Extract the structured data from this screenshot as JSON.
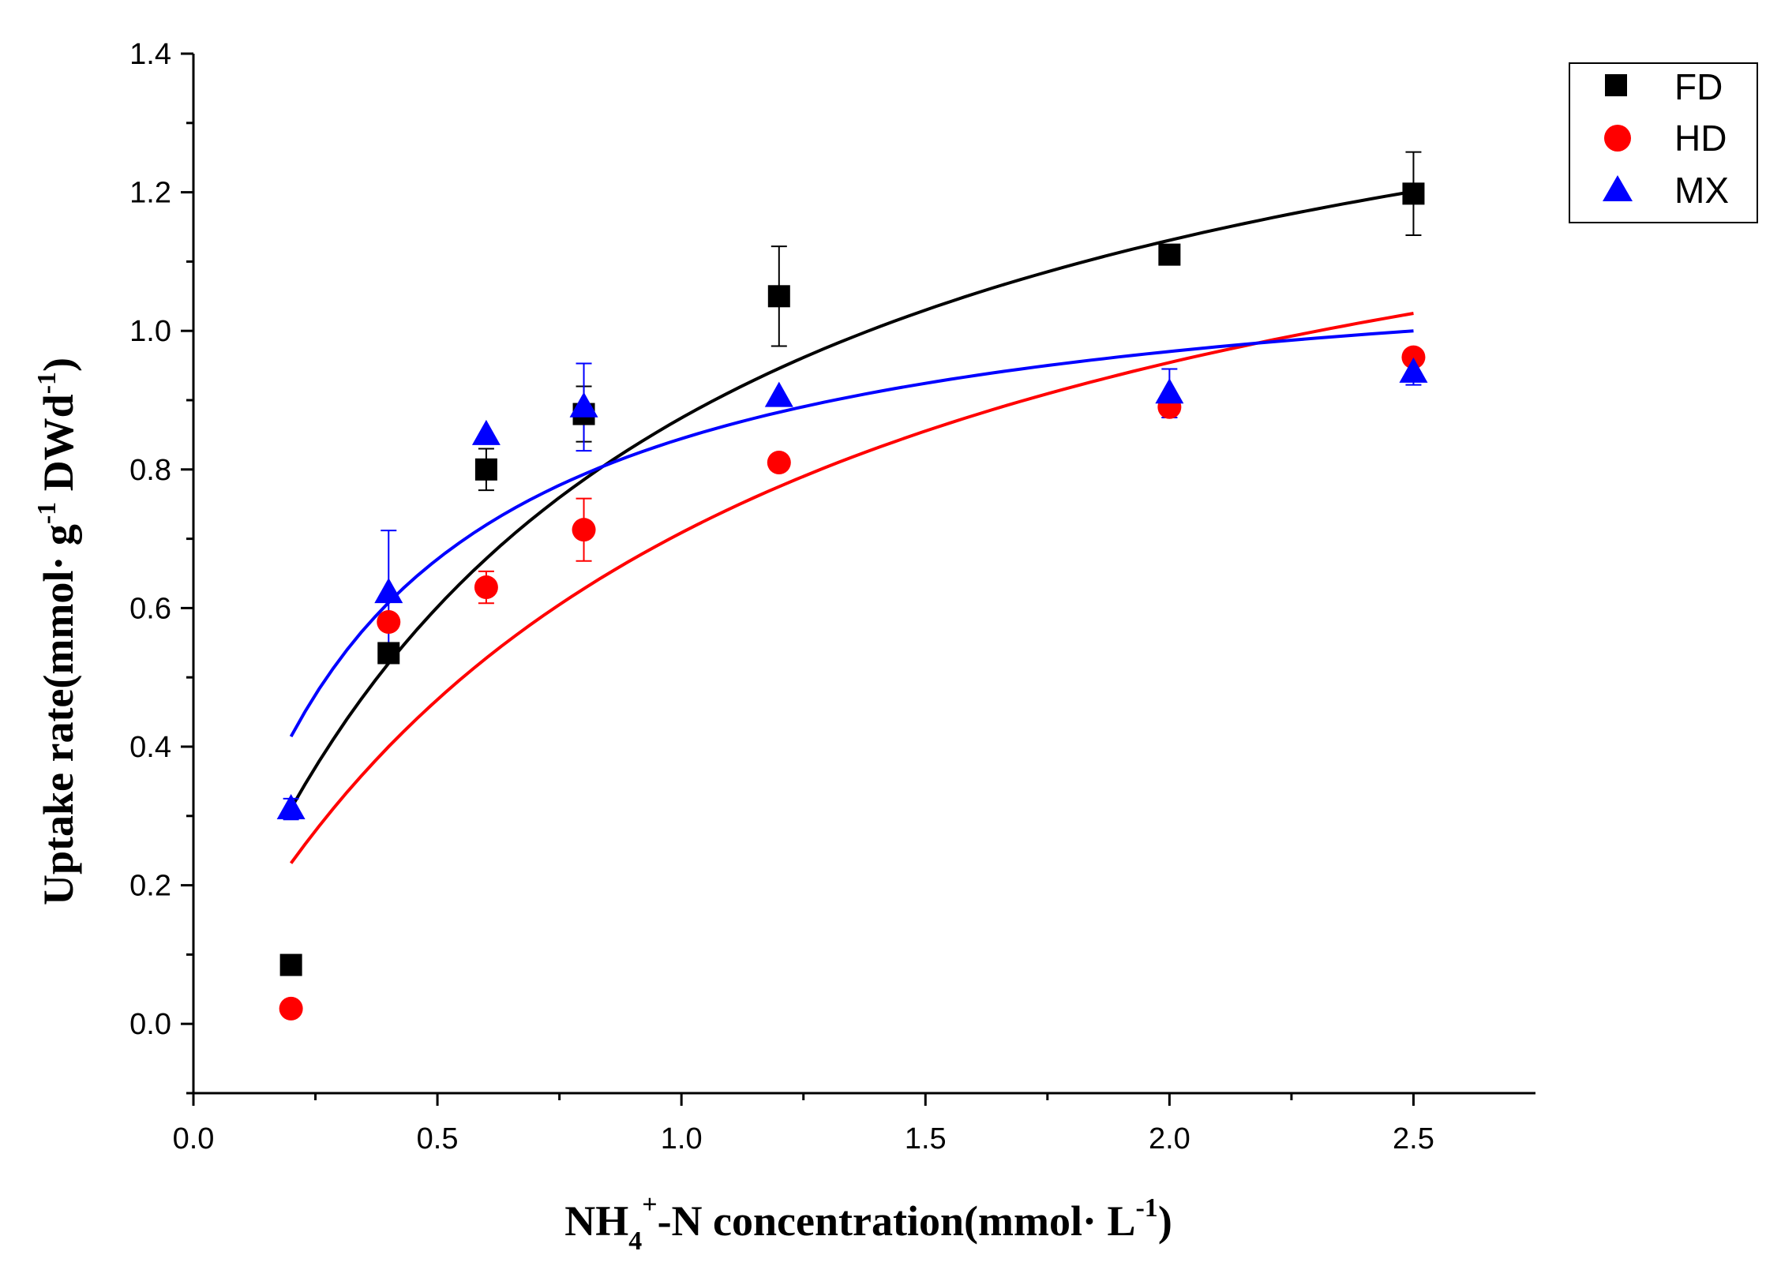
{
  "chart_data": {
    "type": "scatter",
    "title": "",
    "xlabel": {
      "parts": [
        "NH",
        "4",
        "+",
        "-N concentration(mmol· L",
        "-1",
        ")"
      ]
    },
    "ylabel": {
      "parts": [
        "Uptake rate(mmol· g",
        "-1",
        " DWd",
        "-1",
        ")"
      ]
    },
    "xlim": [
      0.0,
      2.75
    ],
    "ylim": [
      -0.1,
      1.4
    ],
    "xticks": [
      0.0,
      0.5,
      1.0,
      1.5,
      2.0,
      2.5
    ],
    "xtick_labels": [
      "0.0",
      "0.5",
      "1.0",
      "1.5",
      "2.0",
      "2.5"
    ],
    "yticks": [
      0.0,
      0.2,
      0.4,
      0.6,
      0.8,
      1.0,
      1.2,
      1.4
    ],
    "ytick_labels": [
      "0.0",
      "0.2",
      "0.4",
      "0.6",
      "0.8",
      "1.0",
      "1.2",
      "1.4"
    ],
    "legend_position": "top-right (outside plot)",
    "series": [
      {
        "name": "FD",
        "marker": "square",
        "color": "#000000",
        "x": [
          0.2,
          0.4,
          0.6,
          0.8,
          1.2,
          2.0,
          2.5
        ],
        "y": [
          0.085,
          0.535,
          0.8,
          0.88,
          1.05,
          1.11,
          1.198
        ],
        "err": [
          0.0,
          0.0,
          0.03,
          0.04,
          0.072,
          0.0,
          0.06
        ],
        "fit": {
          "model": "michaelis-menten",
          "vmax": 1.6,
          "km": 0.83,
          "x_from": 0.2,
          "x_to": 2.5
        }
      },
      {
        "name": "HD",
        "marker": "circle",
        "color": "#ff0000",
        "x": [
          0.2,
          0.4,
          0.6,
          0.8,
          1.2,
          2.0,
          2.5
        ],
        "y": [
          0.022,
          0.58,
          0.63,
          0.713,
          0.81,
          0.89,
          0.962
        ],
        "err": [
          0.0,
          0.0,
          0.023,
          0.045,
          0.0,
          0.015,
          0.0
        ],
        "fit": {
          "model": "michaelis-menten",
          "vmax": 1.46,
          "km": 1.06,
          "x_from": 0.2,
          "x_to": 2.5
        }
      },
      {
        "name": "MX",
        "marker": "triangle",
        "color": "#0000ff",
        "x": [
          0.2,
          0.4,
          0.6,
          0.8,
          1.2,
          2.0,
          2.5
        ],
        "y": [
          0.31,
          0.622,
          0.85,
          0.89,
          0.905,
          0.91,
          0.94
        ],
        "err": [
          0.015,
          0.09,
          0.0,
          0.063,
          0.0,
          0.035,
          0.018
        ],
        "fit": {
          "model": "michaelis-menten",
          "vmax": 1.14,
          "km": 0.35,
          "x_from": 0.2,
          "x_to": 2.5
        }
      }
    ]
  }
}
